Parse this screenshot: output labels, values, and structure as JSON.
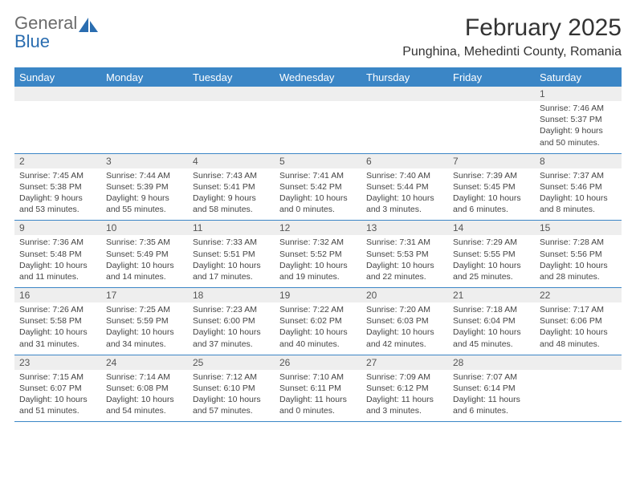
{
  "logo": {
    "word1": "General",
    "word2": "Blue"
  },
  "title": {
    "month": "February 2025",
    "location": "Punghina, Mehedinti County, Romania"
  },
  "colors": {
    "header_bg": "#3b86c6",
    "header_fg": "#ffffff",
    "daynum_bg": "#eeeeee",
    "rule": "#3b86c6",
    "text": "#333333",
    "logo_gray": "#6b6b6b",
    "logo_blue": "#2a6db0"
  },
  "dayNames": [
    "Sunday",
    "Monday",
    "Tuesday",
    "Wednesday",
    "Thursday",
    "Friday",
    "Saturday"
  ],
  "weeks": [
    {
      "nums": [
        "",
        "",
        "",
        "",
        "",
        "",
        "1"
      ],
      "sunrise": [
        "",
        "",
        "",
        "",
        "",
        "",
        "Sunrise: 7:46 AM"
      ],
      "sunset": [
        "",
        "",
        "",
        "",
        "",
        "",
        "Sunset: 5:37 PM"
      ],
      "day1": [
        "",
        "",
        "",
        "",
        "",
        "",
        "Daylight: 9 hours"
      ],
      "day2": [
        "",
        "",
        "",
        "",
        "",
        "",
        "and 50 minutes."
      ]
    },
    {
      "nums": [
        "2",
        "3",
        "4",
        "5",
        "6",
        "7",
        "8"
      ],
      "sunrise": [
        "Sunrise: 7:45 AM",
        "Sunrise: 7:44 AM",
        "Sunrise: 7:43 AM",
        "Sunrise: 7:41 AM",
        "Sunrise: 7:40 AM",
        "Sunrise: 7:39 AM",
        "Sunrise: 7:37 AM"
      ],
      "sunset": [
        "Sunset: 5:38 PM",
        "Sunset: 5:39 PM",
        "Sunset: 5:41 PM",
        "Sunset: 5:42 PM",
        "Sunset: 5:44 PM",
        "Sunset: 5:45 PM",
        "Sunset: 5:46 PM"
      ],
      "day1": [
        "Daylight: 9 hours",
        "Daylight: 9 hours",
        "Daylight: 9 hours",
        "Daylight: 10 hours",
        "Daylight: 10 hours",
        "Daylight: 10 hours",
        "Daylight: 10 hours"
      ],
      "day2": [
        "and 53 minutes.",
        "and 55 minutes.",
        "and 58 minutes.",
        "and 0 minutes.",
        "and 3 minutes.",
        "and 6 minutes.",
        "and 8 minutes."
      ]
    },
    {
      "nums": [
        "9",
        "10",
        "11",
        "12",
        "13",
        "14",
        "15"
      ],
      "sunrise": [
        "Sunrise: 7:36 AM",
        "Sunrise: 7:35 AM",
        "Sunrise: 7:33 AM",
        "Sunrise: 7:32 AM",
        "Sunrise: 7:31 AM",
        "Sunrise: 7:29 AM",
        "Sunrise: 7:28 AM"
      ],
      "sunset": [
        "Sunset: 5:48 PM",
        "Sunset: 5:49 PM",
        "Sunset: 5:51 PM",
        "Sunset: 5:52 PM",
        "Sunset: 5:53 PM",
        "Sunset: 5:55 PM",
        "Sunset: 5:56 PM"
      ],
      "day1": [
        "Daylight: 10 hours",
        "Daylight: 10 hours",
        "Daylight: 10 hours",
        "Daylight: 10 hours",
        "Daylight: 10 hours",
        "Daylight: 10 hours",
        "Daylight: 10 hours"
      ],
      "day2": [
        "and 11 minutes.",
        "and 14 minutes.",
        "and 17 minutes.",
        "and 19 minutes.",
        "and 22 minutes.",
        "and 25 minutes.",
        "and 28 minutes."
      ]
    },
    {
      "nums": [
        "16",
        "17",
        "18",
        "19",
        "20",
        "21",
        "22"
      ],
      "sunrise": [
        "Sunrise: 7:26 AM",
        "Sunrise: 7:25 AM",
        "Sunrise: 7:23 AM",
        "Sunrise: 7:22 AM",
        "Sunrise: 7:20 AM",
        "Sunrise: 7:18 AM",
        "Sunrise: 7:17 AM"
      ],
      "sunset": [
        "Sunset: 5:58 PM",
        "Sunset: 5:59 PM",
        "Sunset: 6:00 PM",
        "Sunset: 6:02 PM",
        "Sunset: 6:03 PM",
        "Sunset: 6:04 PM",
        "Sunset: 6:06 PM"
      ],
      "day1": [
        "Daylight: 10 hours",
        "Daylight: 10 hours",
        "Daylight: 10 hours",
        "Daylight: 10 hours",
        "Daylight: 10 hours",
        "Daylight: 10 hours",
        "Daylight: 10 hours"
      ],
      "day2": [
        "and 31 minutes.",
        "and 34 minutes.",
        "and 37 minutes.",
        "and 40 minutes.",
        "and 42 minutes.",
        "and 45 minutes.",
        "and 48 minutes."
      ]
    },
    {
      "nums": [
        "23",
        "24",
        "25",
        "26",
        "27",
        "28",
        ""
      ],
      "sunrise": [
        "Sunrise: 7:15 AM",
        "Sunrise: 7:14 AM",
        "Sunrise: 7:12 AM",
        "Sunrise: 7:10 AM",
        "Sunrise: 7:09 AM",
        "Sunrise: 7:07 AM",
        ""
      ],
      "sunset": [
        "Sunset: 6:07 PM",
        "Sunset: 6:08 PM",
        "Sunset: 6:10 PM",
        "Sunset: 6:11 PM",
        "Sunset: 6:12 PM",
        "Sunset: 6:14 PM",
        ""
      ],
      "day1": [
        "Daylight: 10 hours",
        "Daylight: 10 hours",
        "Daylight: 10 hours",
        "Daylight: 11 hours",
        "Daylight: 11 hours",
        "Daylight: 11 hours",
        ""
      ],
      "day2": [
        "and 51 minutes.",
        "and 54 minutes.",
        "and 57 minutes.",
        "and 0 minutes.",
        "and 3 minutes.",
        "and 6 minutes.",
        ""
      ]
    }
  ]
}
